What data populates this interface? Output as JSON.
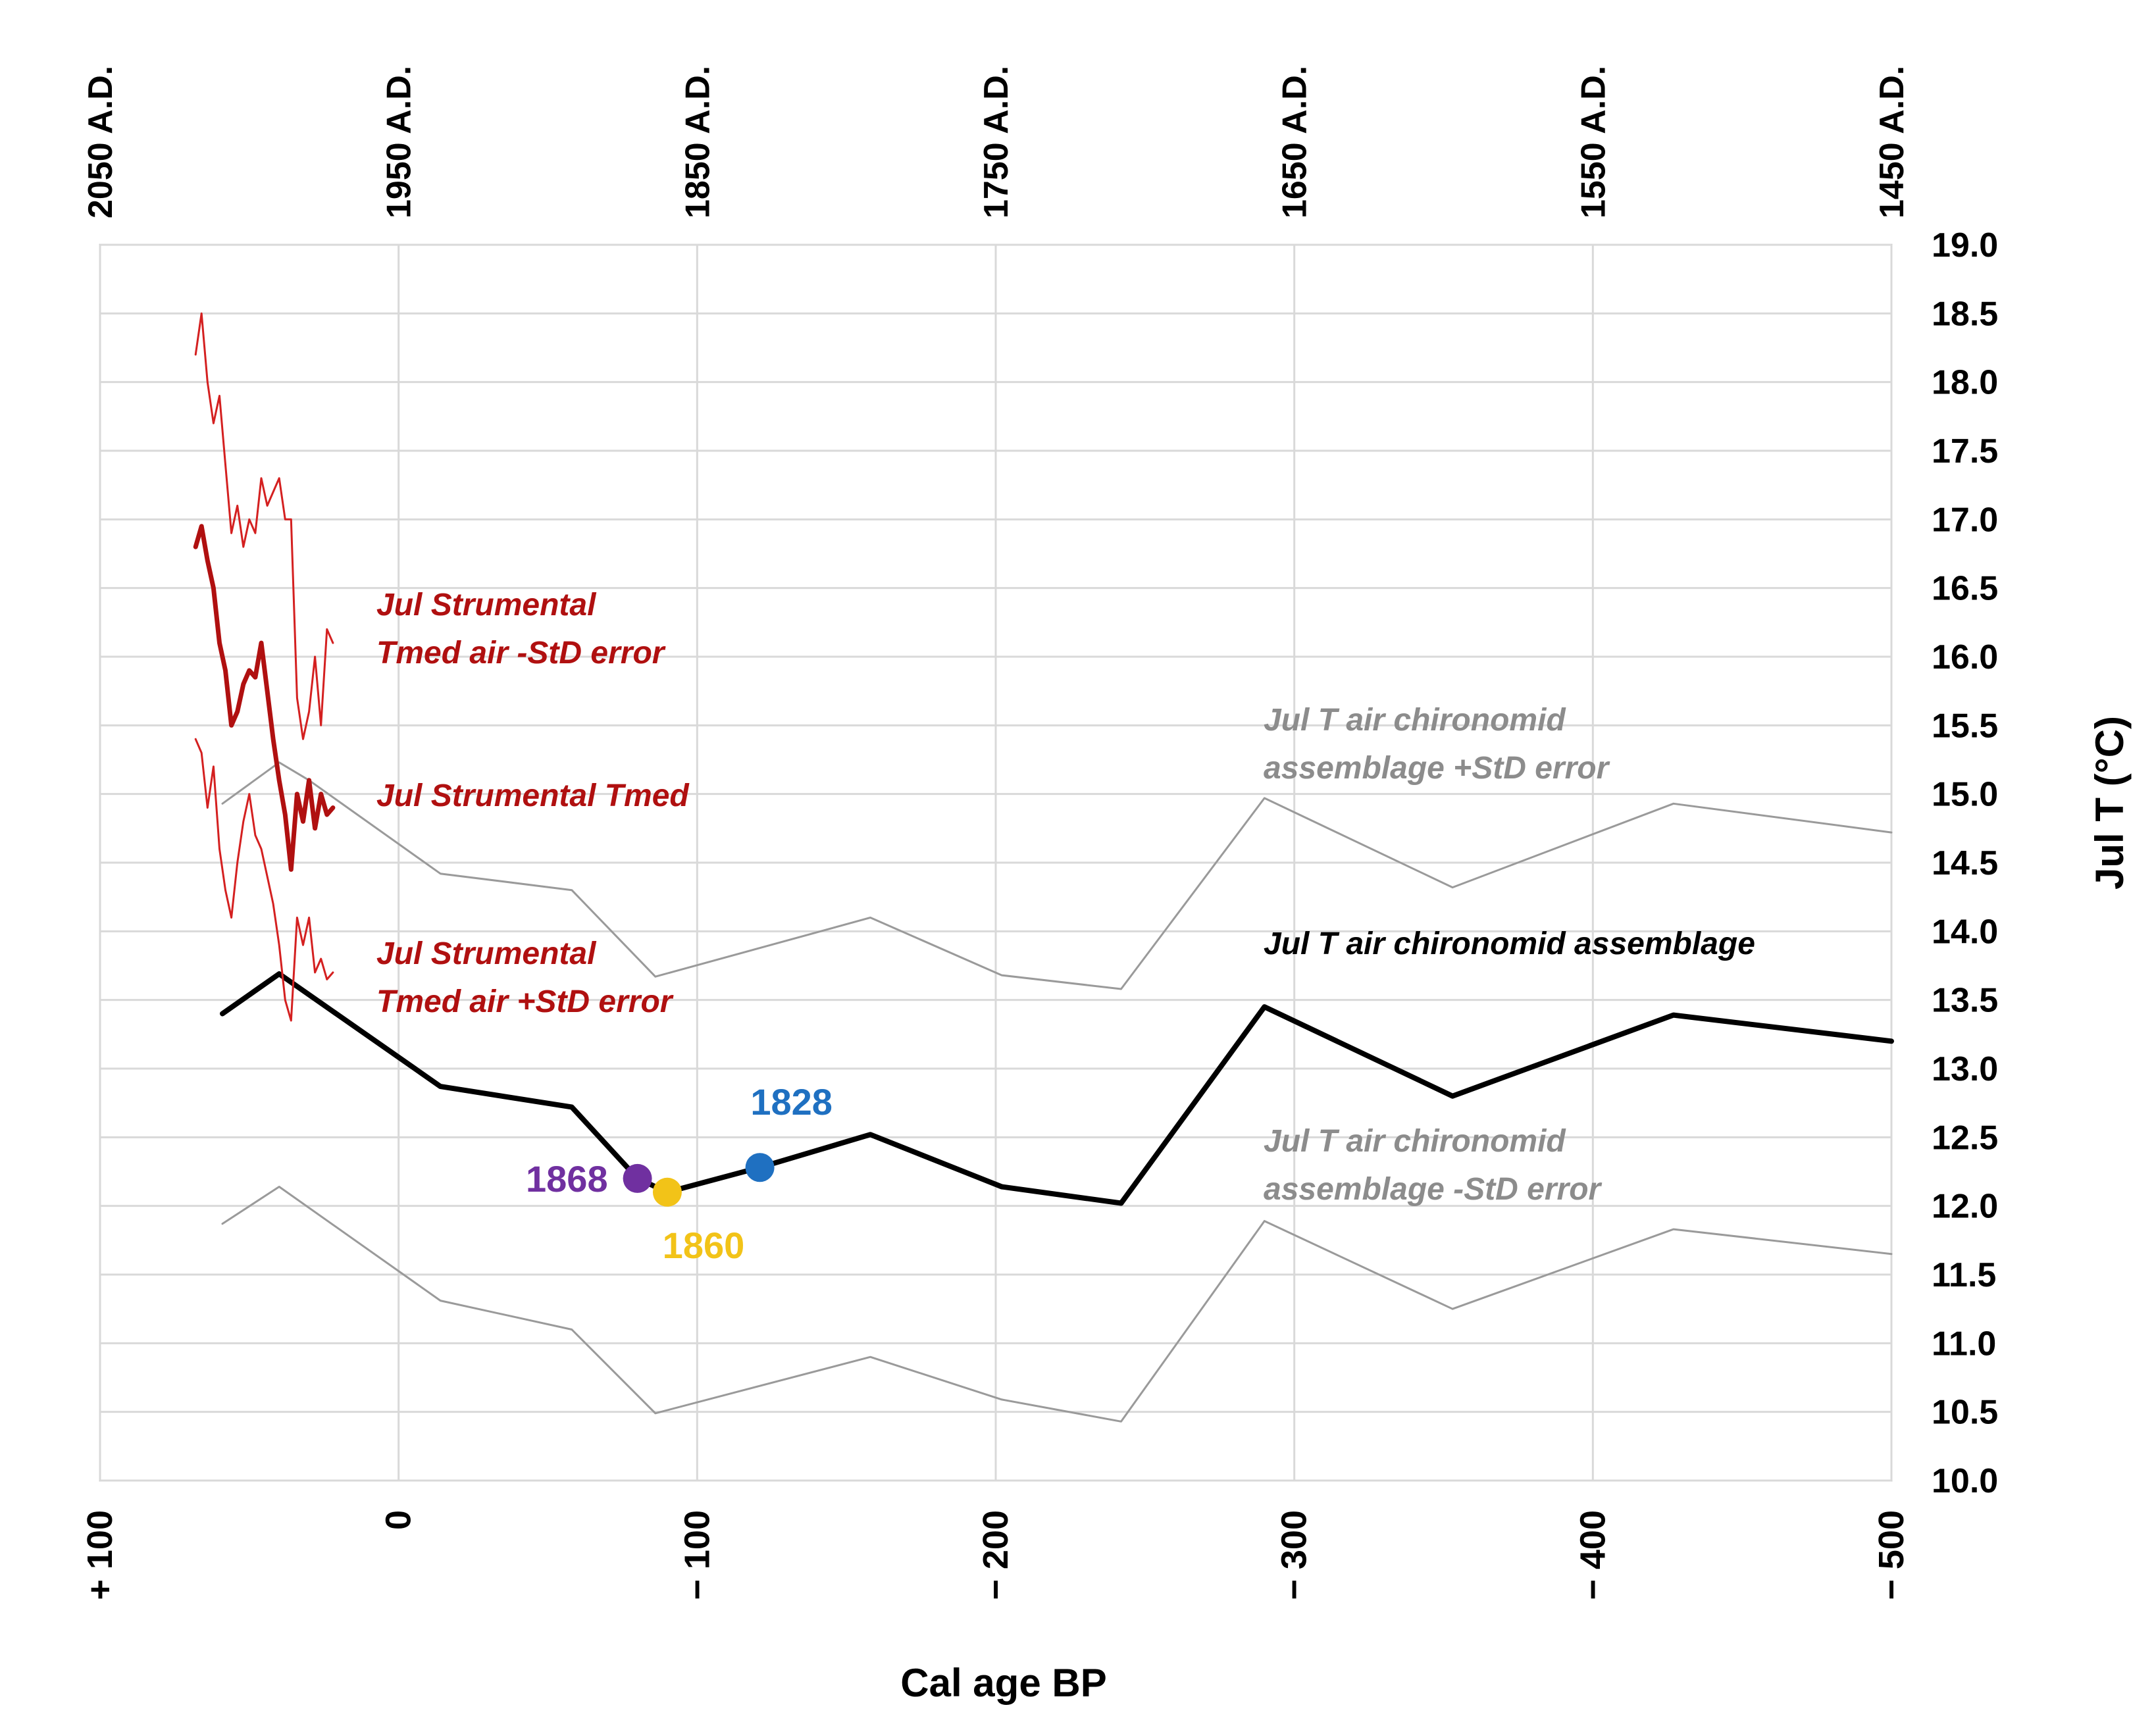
{
  "chart_data": {
    "type": "line",
    "xlabel": "Cal age BP",
    "ylabel": "Jul T (°C)",
    "xlim": [
      -100,
      500
    ],
    "ylim": [
      10.0,
      19.0
    ],
    "x_tick_labels": [
      {
        "value": -100,
        "label": "+ 100"
      },
      {
        "value": 0,
        "label": "0"
      },
      {
        "value": 100,
        "label": "− 100"
      },
      {
        "value": 200,
        "label": "− 200"
      },
      {
        "value": 300,
        "label": "− 300"
      },
      {
        "value": 400,
        "label": "− 400"
      },
      {
        "value": 500,
        "label": "− 500"
      }
    ],
    "top_tick_labels": [
      {
        "value": -100,
        "label": "2050 A.D."
      },
      {
        "value": 0,
        "label": "1950 A.D."
      },
      {
        "value": 100,
        "label": "1850 A.D."
      },
      {
        "value": 200,
        "label": "1750 A.D."
      },
      {
        "value": 300,
        "label": "1650 A.D."
      },
      {
        "value": 400,
        "label": "1550 A.D."
      },
      {
        "value": 500,
        "label": "1450 A.D."
      }
    ],
    "y_tick_labels": [
      "10.0",
      "10.5",
      "11.0",
      "11.5",
      "12.0",
      "12.5",
      "13.0",
      "13.5",
      "14.0",
      "14.5",
      "15.0",
      "15.5",
      "16.0",
      "16.5",
      "17.0",
      "17.5",
      "18.0",
      "18.5",
      "19.0"
    ],
    "grid": true,
    "series": [
      {
        "name": "Jul T air chironomid assemblage +StD error",
        "color": "#9a9a9a",
        "x": [
          -59,
          -40,
          -30,
          14,
          58,
          86,
          158,
          202,
          242,
          290,
          353,
          427,
          500
        ],
        "y": [
          14.93,
          15.23,
          15.1,
          14.42,
          14.3,
          13.67,
          14.1,
          13.68,
          13.58,
          14.97,
          14.32,
          14.93,
          14.72
        ]
      },
      {
        "name": "Jul T air chironomid assemblage",
        "color": "#000000",
        "x": [
          -59,
          -40,
          14,
          58,
          80,
          90,
          121,
          158,
          202,
          242,
          290,
          353,
          427,
          500
        ],
        "y": [
          13.4,
          13.69,
          12.87,
          12.72,
          12.2,
          12.1,
          12.28,
          12.52,
          12.14,
          12.02,
          13.45,
          12.8,
          13.39,
          13.2
        ]
      },
      {
        "name": "Jul T air chironomid assemblage -StD error",
        "color": "#9a9a9a",
        "x": [
          -59,
          -40,
          14,
          58,
          86,
          158,
          202,
          242,
          290,
          353,
          427,
          500
        ],
        "y": [
          11.87,
          12.14,
          11.31,
          11.1,
          10.49,
          10.9,
          10.59,
          10.43,
          11.89,
          11.25,
          11.83,
          11.65
        ]
      },
      {
        "name": "Jul Strumental Tmed air -StD error",
        "color": "#d42020",
        "x": [
          -68,
          -66,
          -64,
          -62,
          -60,
          -58,
          -56,
          -54,
          -52,
          -50,
          -48,
          -46,
          -44,
          -42,
          -40,
          -38,
          -36,
          -34,
          -32,
          -30,
          -28,
          -26,
          -24,
          -22
        ],
        "y": [
          18.2,
          18.5,
          18.0,
          17.7,
          17.9,
          17.4,
          16.9,
          17.1,
          16.8,
          17.0,
          16.9,
          17.3,
          17.1,
          17.2,
          17.3,
          17.0,
          17.0,
          15.7,
          15.4,
          15.6,
          16.0,
          15.5,
          16.2,
          16.1
        ]
      },
      {
        "name": "Jul Strumental Tmed",
        "color": "#b01010",
        "x": [
          -68,
          -66,
          -64,
          -62,
          -60,
          -58,
          -56,
          -54,
          -52,
          -50,
          -48,
          -46,
          -44,
          -42,
          -40,
          -38,
          -36,
          -34,
          -32,
          -30,
          -28,
          -26,
          -24,
          -22
        ],
        "y": [
          16.8,
          16.95,
          16.7,
          16.5,
          16.1,
          15.9,
          15.5,
          15.6,
          15.8,
          15.9,
          15.85,
          16.1,
          15.75,
          15.4,
          15.1,
          14.85,
          14.45,
          15.0,
          14.8,
          15.1,
          14.75,
          15.0,
          14.85,
          14.9
        ]
      },
      {
        "name": "Jul Strumental Tmed air +StD error",
        "color": "#d42020",
        "x": [
          -68,
          -66,
          -64,
          -62,
          -60,
          -58,
          -56,
          -54,
          -52,
          -50,
          -48,
          -46,
          -44,
          -42,
          -40,
          -38,
          -36,
          -34,
          -32,
          -30,
          -28,
          -26,
          -24,
          -22
        ],
        "y": [
          15.4,
          15.3,
          14.9,
          15.2,
          14.6,
          14.3,
          14.1,
          14.5,
          14.8,
          15.0,
          14.7,
          14.6,
          14.4,
          14.2,
          13.9,
          13.5,
          13.35,
          14.1,
          13.9,
          14.1,
          13.7,
          13.8,
          13.65,
          13.7
        ]
      }
    ],
    "highlight_points": [
      {
        "label": "1868",
        "x": 80,
        "y": 12.2,
        "color": "#7030a0"
      },
      {
        "label": "1860",
        "x": 90,
        "y": 12.1,
        "color": "#f2c318"
      },
      {
        "label": "1828",
        "x": 121,
        "y": 12.28,
        "color": "#1f70c1"
      }
    ],
    "annotations": {
      "strum_minus_1": "Jul Strumental",
      "strum_minus_2": "Tmed air -StD error",
      "strum_mid": "Jul Strumental Tmed",
      "strum_plus_1": "Jul Strumental",
      "strum_plus_2": "Tmed air +StD error",
      "chiro_plus_1": "Jul T air chironomid",
      "chiro_plus_2": "assemblage +StD error",
      "chiro_mid": "Jul T air chironomid assemblage",
      "chiro_minus_1": "Jul T air chironomid",
      "chiro_minus_2": "assemblage -StD error"
    },
    "annotation_colors": {
      "red": "#b01010",
      "gray": "#8c8c8c",
      "black": "#000000"
    }
  }
}
